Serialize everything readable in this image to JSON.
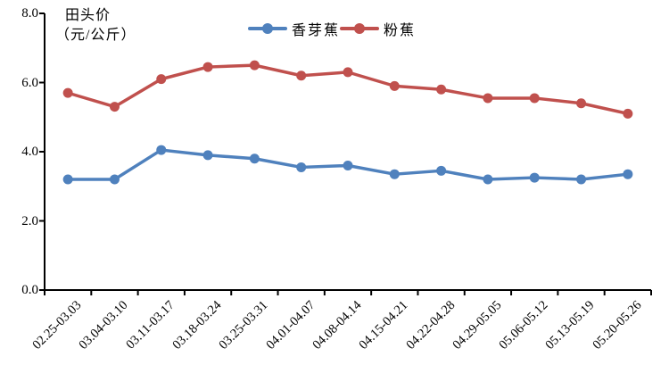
{
  "y_axis_title": {
    "line1": "田头价",
    "line2": "（元/公斤）"
  },
  "legend": {
    "items": [
      {
        "label": "香芽蕉",
        "color": "#4F81BD"
      },
      {
        "label": "粉蕉",
        "color": "#C0504D"
      }
    ]
  },
  "chart_data": {
    "type": "line",
    "title": "",
    "xlabel": "",
    "ylabel": "田头价（元/公斤）",
    "ylim": [
      0,
      8
    ],
    "ytick_interval": 2,
    "yticks": [
      "0.0",
      "2.0",
      "4.0",
      "6.0",
      "8.0"
    ],
    "grid": false,
    "legend_position": "top-center",
    "marker": "circle",
    "axis_color": "#000000",
    "categories": [
      "02.25-03.03",
      "03.04-03.10",
      "03.11-03.17",
      "03.18-03.24",
      "03.25-03.31",
      "04.01-04.07",
      "04.08-04.14",
      "04.15-04.21",
      "04.22-04.28",
      "04.29-05.05",
      "05.06-05.12",
      "05.13-05.19",
      "05.20-05.26"
    ],
    "series": [
      {
        "name": "香芽蕉",
        "color": "#4F81BD",
        "values": [
          3.2,
          3.2,
          4.05,
          3.9,
          3.8,
          3.55,
          3.6,
          3.35,
          3.45,
          3.2,
          3.25,
          3.2,
          3.35
        ]
      },
      {
        "name": "粉蕉",
        "color": "#C0504D",
        "values": [
          5.7,
          5.3,
          6.1,
          6.45,
          6.5,
          6.2,
          6.3,
          5.9,
          5.8,
          5.55,
          5.55,
          5.4,
          5.1
        ]
      }
    ]
  }
}
